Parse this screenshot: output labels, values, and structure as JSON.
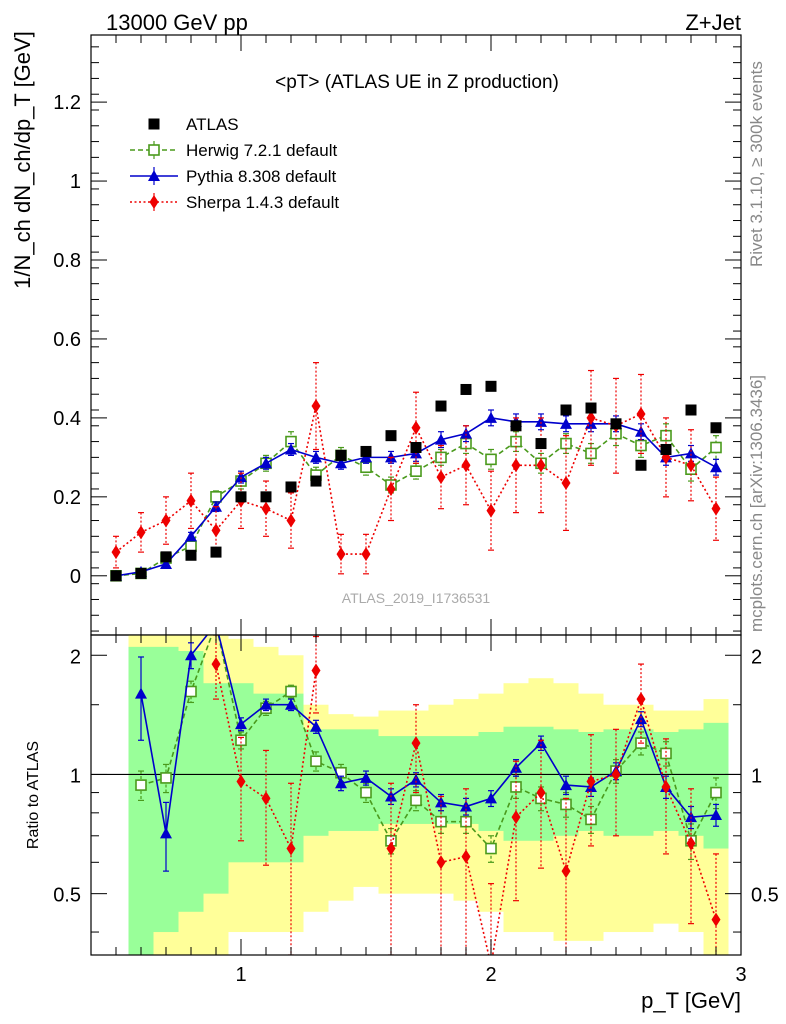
{
  "header": {
    "left": "13000 GeV pp",
    "right": "Z+Jet"
  },
  "side_labels": {
    "rivet": "Rivet 3.1.10, ≥ 300k events",
    "mcplots": "mcplots.cern.ch [arXiv:1306.3436]"
  },
  "analysis_tag": "ATLAS_2019_I1736531",
  "colors": {
    "atlas": "#000000",
    "herwig": "#4a9a1c",
    "pythia": "#0000cc",
    "sherpa": "#ee0000",
    "band_green": "#99ff99",
    "band_yellow": "#ffff99"
  },
  "chart_data": [
    {
      "type": "scatter",
      "title": "<pT> (ATLAS UE in Z production)",
      "ylabel": "1/N_ch dN_ch/dp_T [GeV]",
      "xlabel": "",
      "xlim": [
        0.4,
        3.0
      ],
      "ylim": [
        -0.15,
        1.37
      ],
      "yticks": [
        0,
        0.2,
        0.4,
        0.6,
        0.8,
        1,
        1.2
      ],
      "ytick_labels": [
        "0",
        "0.2",
        "0.4",
        "0.6",
        "0.8",
        "1",
        "1.2"
      ],
      "legend_position": "top-left",
      "x": [
        0.5,
        0.6,
        0.7,
        0.8,
        0.9,
        1.0,
        1.1,
        1.2,
        1.3,
        1.4,
        1.5,
        1.6,
        1.7,
        1.8,
        1.9,
        2.0,
        2.1,
        2.2,
        2.3,
        2.4,
        2.5,
        2.6,
        2.7,
        2.8,
        2.9
      ],
      "series": [
        {
          "name": "ATLAS",
          "key": "atlas",
          "style": "square",
          "values": [
            0.0,
            0.006,
            0.048,
            0.052,
            0.06,
            0.2,
            0.2,
            0.225,
            0.24,
            0.305,
            0.315,
            0.355,
            0.325,
            0.43,
            0.472,
            0.48,
            0.38,
            0.335,
            0.42,
            0.425,
            0.385,
            0.28,
            0.32,
            0.42,
            0.375
          ]
        },
        {
          "name": "Herwig 7.2.1 default",
          "key": "herwig",
          "style": "open-square-dashed",
          "values": [
            0.0,
            0.006,
            0.045,
            0.075,
            0.2,
            0.24,
            0.285,
            0.34,
            0.255,
            0.305,
            0.275,
            0.23,
            0.265,
            0.3,
            0.335,
            0.295,
            0.34,
            0.285,
            0.335,
            0.31,
            0.36,
            0.33,
            0.355,
            0.27,
            0.325
          ],
          "errors": [
            0.003,
            0.004,
            0.008,
            0.012,
            0.015,
            0.02,
            0.02,
            0.025,
            0.02,
            0.02,
            0.02,
            0.02,
            0.02,
            0.02,
            0.025,
            0.025,
            0.025,
            0.025,
            0.025,
            0.025,
            0.03,
            0.03,
            0.03,
            0.03,
            0.03
          ]
        },
        {
          "name": "Pythia 8.308 default",
          "key": "pythia",
          "style": "triangle-solid",
          "values": [
            0.0,
            0.01,
            0.03,
            0.1,
            0.175,
            0.25,
            0.285,
            0.32,
            0.3,
            0.285,
            0.3,
            0.3,
            0.31,
            0.345,
            0.36,
            0.4,
            0.39,
            0.39,
            0.385,
            0.385,
            0.385,
            0.365,
            0.3,
            0.31,
            0.275
          ],
          "errors": [
            0.002,
            0.003,
            0.006,
            0.01,
            0.012,
            0.015,
            0.015,
            0.015,
            0.015,
            0.015,
            0.015,
            0.015,
            0.02,
            0.02,
            0.02,
            0.02,
            0.02,
            0.02,
            0.02,
            0.02,
            0.02,
            0.02,
            0.02,
            0.02,
            0.02
          ]
        },
        {
          "name": "Sherpa 1.4.3 default",
          "key": "sherpa",
          "style": "diamond-dotted",
          "values": [
            0.06,
            0.11,
            0.14,
            0.19,
            0.115,
            0.19,
            0.17,
            0.14,
            0.43,
            0.055,
            0.055,
            0.22,
            0.375,
            0.25,
            0.28,
            0.165,
            0.28,
            0.28,
            0.235,
            0.4,
            0.38,
            0.41,
            0.3,
            0.28,
            0.17
          ],
          "errors": [
            0.04,
            0.05,
            0.06,
            0.07,
            0.06,
            0.07,
            0.07,
            0.07,
            0.11,
            0.05,
            0.05,
            0.08,
            0.09,
            0.08,
            0.1,
            0.1,
            0.12,
            0.12,
            0.12,
            0.12,
            0.12,
            0.1,
            0.1,
            0.09,
            0.08
          ]
        }
      ]
    },
    {
      "type": "line",
      "title": "",
      "ylabel": "Ratio to ATLAS",
      "xlabel": "p_T [GeV]",
      "xlim": [
        0.4,
        3.0
      ],
      "ylim": [
        0.35,
        2.25
      ],
      "log_y": true,
      "xticks": [
        1,
        2,
        3
      ],
      "xtick_labels": [
        "1",
        "2",
        "3"
      ],
      "yticks": [
        0.5,
        1,
        2
      ],
      "ytick_labels": [
        "0.5",
        "1",
        "2"
      ],
      "reference_line": 1,
      "x": [
        0.6,
        0.7,
        0.8,
        0.9,
        1.0,
        1.1,
        1.2,
        1.3,
        1.4,
        1.5,
        1.6,
        1.7,
        1.8,
        1.9,
        2.0,
        2.1,
        2.2,
        2.3,
        2.4,
        2.5,
        2.6,
        2.7,
        2.8,
        2.9
      ],
      "band_green": [
        [
          0.3,
          2.1
        ],
        [
          0.4,
          2.1
        ],
        [
          0.45,
          2.05
        ],
        [
          0.5,
          1.7
        ],
        [
          0.6,
          1.7
        ],
        [
          0.6,
          1.6
        ],
        [
          0.6,
          1.6
        ],
        [
          0.7,
          1.3
        ],
        [
          0.72,
          1.3
        ],
        [
          0.72,
          1.3
        ],
        [
          0.75,
          1.25
        ],
        [
          0.75,
          1.25
        ],
        [
          0.75,
          1.25
        ],
        [
          0.75,
          1.25
        ],
        [
          0.72,
          1.28
        ],
        [
          0.68,
          1.32
        ],
        [
          0.68,
          1.32
        ],
        [
          0.7,
          1.3
        ],
        [
          0.72,
          1.28
        ],
        [
          0.7,
          1.3
        ],
        [
          0.7,
          1.3
        ],
        [
          0.72,
          1.28
        ],
        [
          0.7,
          1.3
        ],
        [
          0.65,
          1.35
        ]
      ],
      "band_yellow": [
        [
          0.2,
          2.5
        ],
        [
          0.3,
          2.5
        ],
        [
          0.35,
          2.4
        ],
        [
          0.35,
          2.3
        ],
        [
          0.4,
          2.2
        ],
        [
          0.4,
          2.1
        ],
        [
          0.4,
          2.0
        ],
        [
          0.45,
          1.5
        ],
        [
          0.48,
          1.42
        ],
        [
          0.52,
          1.4
        ],
        [
          0.5,
          1.45
        ],
        [
          0.5,
          1.45
        ],
        [
          0.5,
          1.5
        ],
        [
          0.48,
          1.55
        ],
        [
          0.45,
          1.6
        ],
        [
          0.4,
          1.7
        ],
        [
          0.4,
          1.75
        ],
        [
          0.38,
          1.7
        ],
        [
          0.38,
          1.6
        ],
        [
          0.4,
          1.5
        ],
        [
          0.4,
          1.5
        ],
        [
          0.42,
          1.45
        ],
        [
          0.4,
          1.45
        ],
        [
          0.35,
          1.55
        ]
      ],
      "series": [
        {
          "name": "Herwig 7.2.1 default",
          "key": "herwig",
          "style": "open-square-dashed",
          "values": [
            0.94,
            0.98,
            1.62,
            2.4,
            1.22,
            1.47,
            1.62,
            1.08,
            1.01,
            0.9,
            0.68,
            0.86,
            0.76,
            0.76,
            0.65,
            0.93,
            0.87,
            0.84,
            0.77,
            1.02,
            1.2,
            1.13,
            0.68,
            0.9
          ],
          "errors": [
            0.08,
            0.08,
            0.1,
            0.15,
            0.06,
            0.06,
            0.06,
            0.06,
            0.05,
            0.05,
            0.05,
            0.05,
            0.05,
            0.05,
            0.05,
            0.06,
            0.06,
            0.06,
            0.06,
            0.07,
            0.08,
            0.08,
            0.07,
            0.08
          ]
        },
        {
          "name": "Pythia 8.308 default",
          "key": "pythia",
          "style": "triangle-solid",
          "values": [
            1.6,
            0.71,
            2.0,
            2.4,
            1.34,
            1.5,
            1.5,
            1.32,
            0.95,
            0.98,
            0.88,
            0.97,
            0.85,
            0.83,
            0.87,
            1.04,
            1.2,
            0.94,
            0.93,
            1.02,
            1.38,
            0.93,
            0.78,
            0.79
          ],
          "errors": [
            0.38,
            0.14,
            0.15,
            0.1,
            0.05,
            0.05,
            0.05,
            0.05,
            0.04,
            0.04,
            0.04,
            0.04,
            0.04,
            0.04,
            0.04,
            0.05,
            0.05,
            0.05,
            0.05,
            0.05,
            0.06,
            0.06,
            0.05,
            0.05
          ]
        },
        {
          "name": "Sherpa 1.4.3 default",
          "key": "sherpa",
          "style": "diamond-dotted",
          "values": [
            null,
            null,
            null,
            1.9,
            0.96,
            0.87,
            0.65,
            1.83,
            null,
            null,
            0.65,
            1.2,
            0.6,
            0.62,
            0.33,
            0.78,
            0.9,
            0.57,
            0.96,
            1.0,
            1.55,
            0.93,
            0.67,
            0.43
          ],
          "errors": [
            0,
            0,
            0,
            0.35,
            0.28,
            0.28,
            0.3,
            0.4,
            0,
            0,
            0.3,
            0.3,
            0.28,
            0.3,
            0.2,
            0.3,
            0.32,
            0.3,
            0.3,
            0.3,
            0.35,
            0.3,
            0.25,
            0.2
          ]
        }
      ]
    }
  ]
}
